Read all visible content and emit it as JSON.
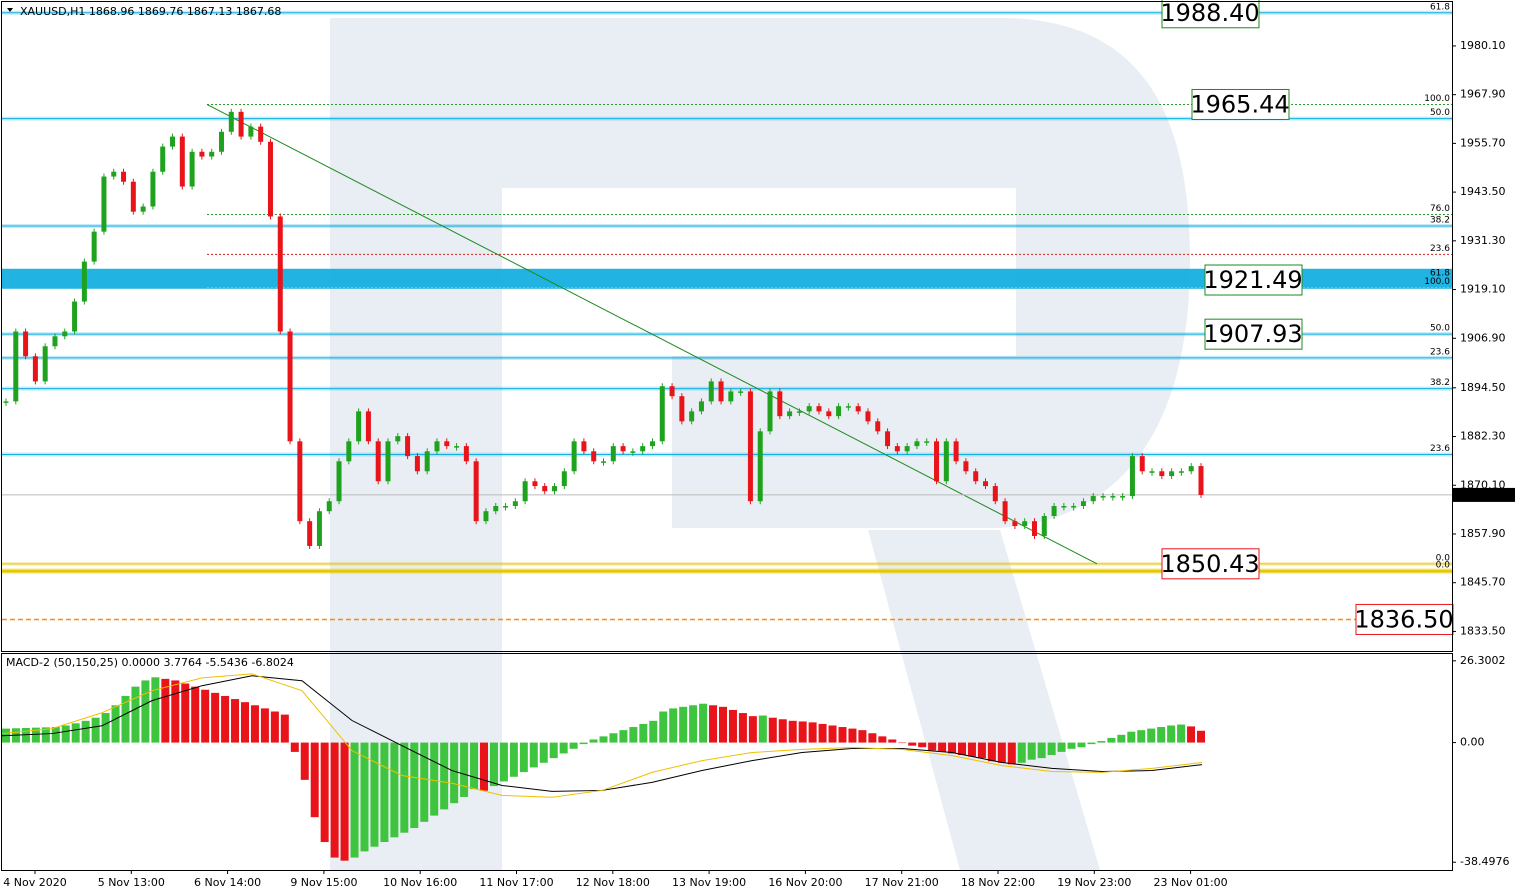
{
  "chart_data": {
    "type": "candlestick",
    "title": "XAUUSD,H1  1868.96 1869.76 1867.13 1867.68",
    "categories": [
      "4 Nov 2020",
      "5 Nov 13:00",
      "6 Nov 14:00",
      "9 Nov 15:00",
      "10 Nov 16:00",
      "11 Nov 17:00",
      "12 Nov 18:00",
      "13 Nov 19:00",
      "16 Nov 20:00",
      "17 Nov 21:00",
      "18 Nov 22:00",
      "19 Nov 23:00",
      "23 Nov 01:00"
    ],
    "ylim": [
      1828.6,
      1991.1
    ],
    "yticks": [
      {
        "value": 1980.1,
        "label": "1980.10"
      },
      {
        "value": 1967.9,
        "label": "1967.90"
      },
      {
        "value": 1955.7,
        "label": "1955.70"
      },
      {
        "value": 1943.5,
        "label": "1943.50"
      },
      {
        "value": 1931.3,
        "label": "1931.30"
      },
      {
        "value": 1919.1,
        "label": "1919.10"
      },
      {
        "value": 1906.9,
        "label": "1906.90"
      },
      {
        "value": 1894.5,
        "label": "1894.50"
      },
      {
        "value": 1882.3,
        "label": "1882.30"
      },
      {
        "value": 1870.1,
        "label": "1870.10"
      },
      {
        "value": 1857.9,
        "label": "1857.90"
      },
      {
        "value": 1845.7,
        "label": "1845.70"
      },
      {
        "value": 1833.5,
        "label": "1833.50"
      }
    ],
    "up_color": "#1fa31f",
    "down_color": "#e8141a",
    "closes": [
      1891.1,
      1908.6,
      1902.4,
      1896.1,
      1904.9,
      1907.4,
      1908.6,
      1916.1,
      1926.1,
      1933.6,
      1947.4,
      1948.6,
      1946.1,
      1938.6,
      1939.9,
      1948.6,
      1954.9,
      1957.4,
      1944.9,
      1953.6,
      1952.4,
      1953.6,
      1958.6,
      1963.6,
      1957.4,
      1959.9,
      1956.1,
      1937.4,
      1908.6,
      1881.1,
      1861.1,
      1854.9,
      1863.6,
      1866.1,
      1876.1,
      1881.1,
      1888.6,
      1881.1,
      1871.1,
      1881.1,
      1882.4,
      1877.4,
      1873.6,
      1878.6,
      1881.1,
      1879.9,
      1879.9,
      1876.1,
      1861.1,
      1863.6,
      1864.9,
      1864.9,
      1866.1,
      1871.1,
      1869.9,
      1868.6,
      1869.9,
      1873.6,
      1881.1,
      1878.6,
      1876.1,
      1876.1,
      1879.9,
      1878.6,
      1878.6,
      1879.9,
      1881.1,
      1894.9,
      1892.4,
      1886.1,
      1888.6,
      1891.1,
      1896.1,
      1891.1,
      1893.6,
      1893.6,
      1866.1,
      1883.6,
      1893.6,
      1887.4,
      1888.6,
      1888.6,
      1889.9,
      1888.6,
      1887.4,
      1889.9,
      1889.9,
      1888.6,
      1886.1,
      1883.6,
      1879.9,
      1878.6,
      1879.9,
      1881.1,
      1881.1,
      1871.1,
      1881.1,
      1876.1,
      1873.6,
      1871.1,
      1869.9,
      1866.1,
      1861.1,
      1859.9,
      1861.1,
      1857.4,
      1862.4,
      1864.9,
      1864.9,
      1864.9,
      1866.1,
      1867.4,
      1867.4,
      1867.4,
      1867.4,
      1877.4,
      1873.6,
      1873.6,
      1872.4,
      1873.6,
      1873.6,
      1874.9,
      1867.68
    ],
    "current_price": 1867.68,
    "levels": [
      {
        "price": 1988.4,
        "color": "#15b0e0",
        "style": "solid",
        "fib": "61.8"
      },
      {
        "price": 1965.44,
        "color": "#2e9a2e",
        "style": "fib",
        "fib": "100.0"
      },
      {
        "price": 1961.9,
        "color": "#15b0e0",
        "style": "solid",
        "fib": "50.0"
      },
      {
        "price": 1937.9,
        "color": "#2e9a2e",
        "style": "fib",
        "fib": "76.0"
      },
      {
        "price": 1935.0,
        "color": "#15b0e0",
        "style": "solid",
        "fib": "38.2"
      },
      {
        "price": 1927.9,
        "color": "#e02020",
        "style": "fib",
        "fib": "23.6"
      },
      {
        "price": 1921.8,
        "color": "#15b0e0",
        "style": "band",
        "fib": "61.8"
      },
      {
        "price": 1919.6,
        "color": "#d4b800",
        "style": "fib",
        "fib": "100.0"
      },
      {
        "price": 1907.93,
        "color": "#15b0e0",
        "style": "solid",
        "fib": "50.0"
      },
      {
        "price": 1902.0,
        "color": "#15b0e0",
        "style": "solid",
        "fib": "23.6"
      },
      {
        "price": 1894.3,
        "color": "#15b0e0",
        "style": "solid",
        "fib": "38.2"
      },
      {
        "price": 1877.8,
        "color": "#15b0e0",
        "style": "solid",
        "fib": "23.6"
      },
      {
        "price": 1850.43,
        "color": "#e6c800",
        "style": "solid",
        "fib": "0.0"
      },
      {
        "price": 1848.6,
        "color": "#e6c800",
        "style": "thick",
        "fib": "0.0"
      },
      {
        "price": 1836.5,
        "color": "#ff8c00",
        "style": "dashed"
      }
    ],
    "price_labels": [
      {
        "value": 1988.4,
        "label": "1988.40",
        "color": "#1c8a1c"
      },
      {
        "value": 1965.44,
        "label": "1965.44",
        "color": "#1c8a1c"
      },
      {
        "value": 1921.49,
        "label": "1921.49",
        "color": "#1c8a1c"
      },
      {
        "value": 1907.93,
        "label": "1907.93",
        "color": "#1c8a1c"
      },
      {
        "value": 1850.43,
        "label": "1850.43",
        "color": "#e8141a"
      },
      {
        "value": 1836.5,
        "label": "1836.50",
        "color": "#e8141a"
      }
    ],
    "indicator": {
      "type": "macd",
      "title": "MACD-2 (50,150,25) 0.0000 3.7764 -5.5436 -6.8024",
      "ylim": [
        -41.0,
        28.5
      ],
      "yticks": [
        26.3002,
        {
          "value": 0,
          "label": "0.00"
        },
        -38.4976
      ],
      "up_color": "#3fc43f",
      "down_color": "#e8141a",
      "histogram": [
        4.5,
        4.6,
        4.7,
        4.8,
        4.9,
        5.0,
        5.5,
        6.2,
        7.0,
        8.0,
        9.5,
        12,
        15,
        18,
        20,
        21,
        20.5,
        20,
        19,
        18,
        17,
        16,
        15,
        14,
        13,
        12,
        11,
        10,
        9,
        -3,
        -12,
        -24,
        -32,
        -37,
        -38,
        -37,
        -35,
        -33.5,
        -32,
        -30.5,
        -29,
        -27.5,
        -25.5,
        -23.5,
        -21.5,
        -19.5,
        -17.5,
        -15,
        -15.5,
        -14,
        -12.5,
        -11,
        -9.5,
        -8,
        -6.5,
        -5,
        -3.5,
        -2,
        -0.5,
        1,
        2,
        3,
        4,
        5,
        6,
        7,
        10,
        11,
        11.5,
        12,
        12.5,
        12,
        11.5,
        10.5,
        9.5,
        8.5,
        8.7,
        8,
        7.5,
        7,
        6.8,
        6.5,
        6,
        5.5,
        5,
        4.5,
        4,
        3,
        2,
        1,
        0,
        -1,
        -1.5,
        -2.5,
        -3,
        -3.5,
        -4,
        -4.5,
        -5,
        -6,
        -6.5,
        -7,
        -6.5,
        -5.5,
        -5,
        -4,
        -3,
        -2,
        -1.5,
        -0.5,
        0.5,
        1.5,
        2.5,
        3.5,
        4,
        4.5,
        5,
        5.5,
        5.8,
        5.2,
        3.8
      ],
      "series": [
        {
          "color": "#000000",
          "values": [
            2.2,
            2.9,
            5.4,
            13.5,
            18.3,
            21.5,
            19.9,
            7.1,
            -1,
            -9,
            -13.8,
            -15.7,
            -15.4,
            -12.8,
            -9,
            -5.8,
            -3.2,
            -1.9,
            -1.9,
            -3.2,
            -6.4,
            -8.3,
            -9.3,
            -9,
            -7.1
          ]
        },
        {
          "color": "#f0c000",
          "values": [
            2.9,
            4.5,
            9.6,
            16.7,
            20.8,
            22.1,
            16.7,
            -2.6,
            -10.6,
            -13.1,
            -17,
            -17.6,
            -15.4,
            -9.6,
            -5.8,
            -3.2,
            -2.2,
            -1.6,
            -2.2,
            -4.2,
            -7.4,
            -9.3,
            -9.6,
            -8.3,
            -6.4
          ]
        }
      ]
    }
  }
}
